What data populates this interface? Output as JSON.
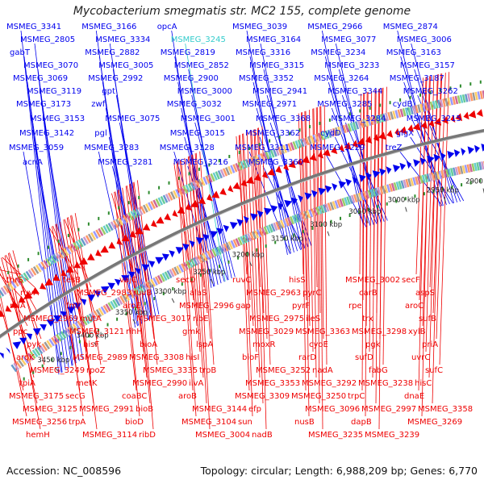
{
  "title": "Mycobacterium smegmatis str. MC2 155, complete genome",
  "accession": "Accession: NC_008596",
  "summary": "Topology: circular; Length: 6,988,209 bp; Genes: 6,770",
  "colors": {
    "forward": "#0000ee",
    "reverse": "#ee0000",
    "highlight": "#33cccc",
    "backbone": "#777777",
    "green": "#2e8b2e"
  },
  "axis_ticks": [
    "2900 kbp",
    "2950 kbp",
    "3000 kbp",
    "3050 kbp",
    "3100 kbp",
    "3150 kbp",
    "3200 kbp",
    "3250 kbp",
    "3300 kbp",
    "3350 kbp",
    "3400 kbp",
    "3450 kbp"
  ],
  "forward_labels": [
    "MSMEG_3341",
    "MSMEG_3166",
    "opcA",
    "MSMEG_3039",
    "MSMEG_2966",
    "MSMEG_2874",
    "MSMEG_2805",
    "MSMEG_3334",
    "MSMEG_3245",
    "MSMEG_3164",
    "MSMEG_3077",
    "MSMEG_3006",
    "gabT",
    "MSMEG_2882",
    "MSMEG_2819",
    "MSMEG_3316",
    "MSMEG_3234",
    "MSMEG_3163",
    "MSMEG_3070",
    "MSMEG_3005",
    "MSMEG_2852",
    "MSMEG_3315",
    "MSMEG_3233",
    "MSMEG_3157",
    "MSMEG_3069",
    "MSMEG_2992",
    "MSMEG_2900",
    "MSMEG_3352",
    "MSMEG_3264",
    "MSMEG_3187",
    "MSMEG_3119",
    "gpt",
    "MSMEG_3000",
    "MSMEG_2941",
    "MSMEG_3344",
    "MSMEG_3262",
    "MSMEG_3173",
    "zwf",
    "MSMEG_3032",
    "MSMEG_2971",
    "MSMEG_3285",
    "cydB",
    "MSMEG_3153",
    "MSMEG_3075",
    "MSMEG_3001",
    "MSMEG_3368",
    "MSMEG_3284",
    "MSMEG_3215",
    "MSMEG_3142",
    "pgl",
    "MSMEG_3015",
    "MSMEG_3362",
    "cydD",
    "glgX",
    "MSMEG_3059",
    "MSMEG_3283",
    "MSMEG_3128",
    "MSMEG_3311",
    "MSMEG_3229",
    "treZ",
    "acnA",
    "MSMEG_3281",
    "MSMEG_3216",
    "MSMEG_3360"
  ],
  "reverse_labels": [
    "thrS",
    "tesB",
    "vajC",
    "secD",
    "ruvC",
    "hisS",
    "MSMEG_3002",
    "secF",
    "ruvA",
    "MSMEG_2983",
    "ruvB",
    "alaS",
    "MSMEG_2963",
    "pyrC",
    "carB",
    "aspS",
    "relA",
    "fmt",
    "aroE",
    "MSMEG_2996",
    "gap",
    "pyrF",
    "rpe",
    "aroC",
    "MSMEG_2969",
    "mutA",
    "MSMEG_3017",
    "ribE",
    "MSMEG_2975",
    "ileS",
    "trx",
    "sufB",
    "ppc",
    "MSMEG_3121",
    "rihH",
    "gmk",
    "MSMEG_3029",
    "MSMEG_3363",
    "MSMEG_3298",
    "xylB",
    "pyk",
    "hisF",
    "bioA",
    "lspA",
    "moxR",
    "cyoE",
    "pgk",
    "priA",
    "aroK",
    "MSMEG_2989",
    "MSMEG_3308",
    "hisI",
    "bioF",
    "rarD",
    "sufD",
    "uvrC",
    "MSMEG_3249",
    "rpoZ",
    "MSMEG_3335",
    "trpB",
    "MSMEG_3252",
    "nadA",
    "fabG",
    "sufC",
    "tpiA",
    "metK",
    "MSMEG_2990",
    "ilvA",
    "MSMEG_3353",
    "MSMEG_3292",
    "MSMEG_3238",
    "hisC",
    "MSMEG_3175",
    "secG",
    "coaBC",
    "aroB",
    "MSMEG_3309",
    "MSMEG_3250",
    "trpC",
    "dnaE",
    "MSMEG_3125",
    "MSMEG_2991",
    "bioB",
    "MSMEG_3144",
    "efp",
    "MSMEG_3096",
    "MSMEG_2997",
    "MSMEG_3358",
    "MSMEG_3256",
    "trpA",
    "bioD",
    "MSMEG_3104",
    "sun",
    "nusB",
    "dapB",
    "MSMEG_3269",
    "hemH",
    "MSMEG_3114",
    "ribD",
    "MSMEG_3004",
    "nadB",
    "MSMEG_3235",
    "MSMEG_3239"
  ]
}
